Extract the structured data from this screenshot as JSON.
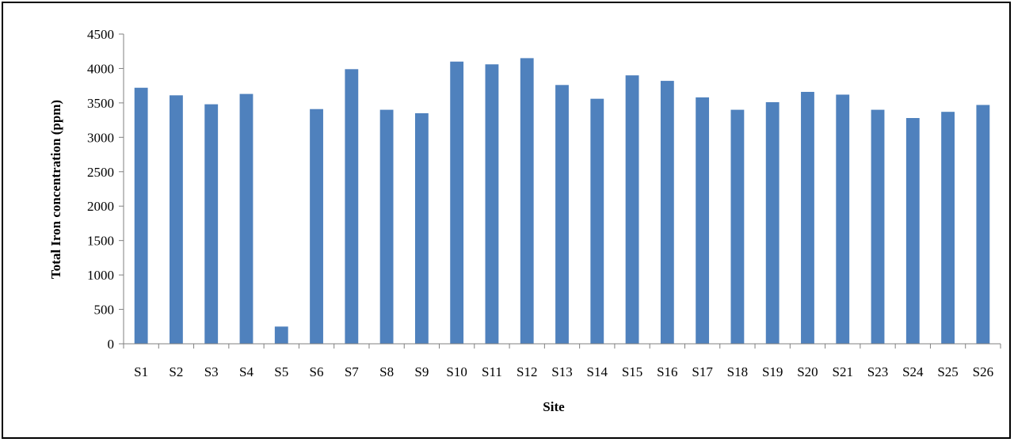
{
  "chart_data": {
    "type": "bar",
    "title": "",
    "xlabel": "Site",
    "ylabel": "Total Iron concentration (ppm)",
    "ylim": [
      0,
      4500
    ],
    "yticks": [
      0,
      500,
      1000,
      1500,
      2000,
      2500,
      3000,
      3500,
      4000,
      4500
    ],
    "categories": [
      "S1",
      "S2",
      "S3",
      "S4",
      "S5",
      "S6",
      "S7",
      "S8",
      "S9",
      "S10",
      "S11",
      "S12",
      "S13",
      "S14",
      "S15",
      "S16",
      "S17",
      "S18",
      "S19",
      "S20",
      "S21",
      "S23",
      "S24",
      "S25",
      "S26"
    ],
    "values": [
      3720,
      3610,
      3480,
      3630,
      250,
      3410,
      3990,
      3400,
      3350,
      4100,
      4060,
      4150,
      3760,
      3560,
      3900,
      3820,
      3580,
      3400,
      3510,
      3660,
      3620,
      3400,
      3280,
      3370,
      3470
    ],
    "bar_color": "#4F81BD",
    "grid": false,
    "legend": "none"
  }
}
